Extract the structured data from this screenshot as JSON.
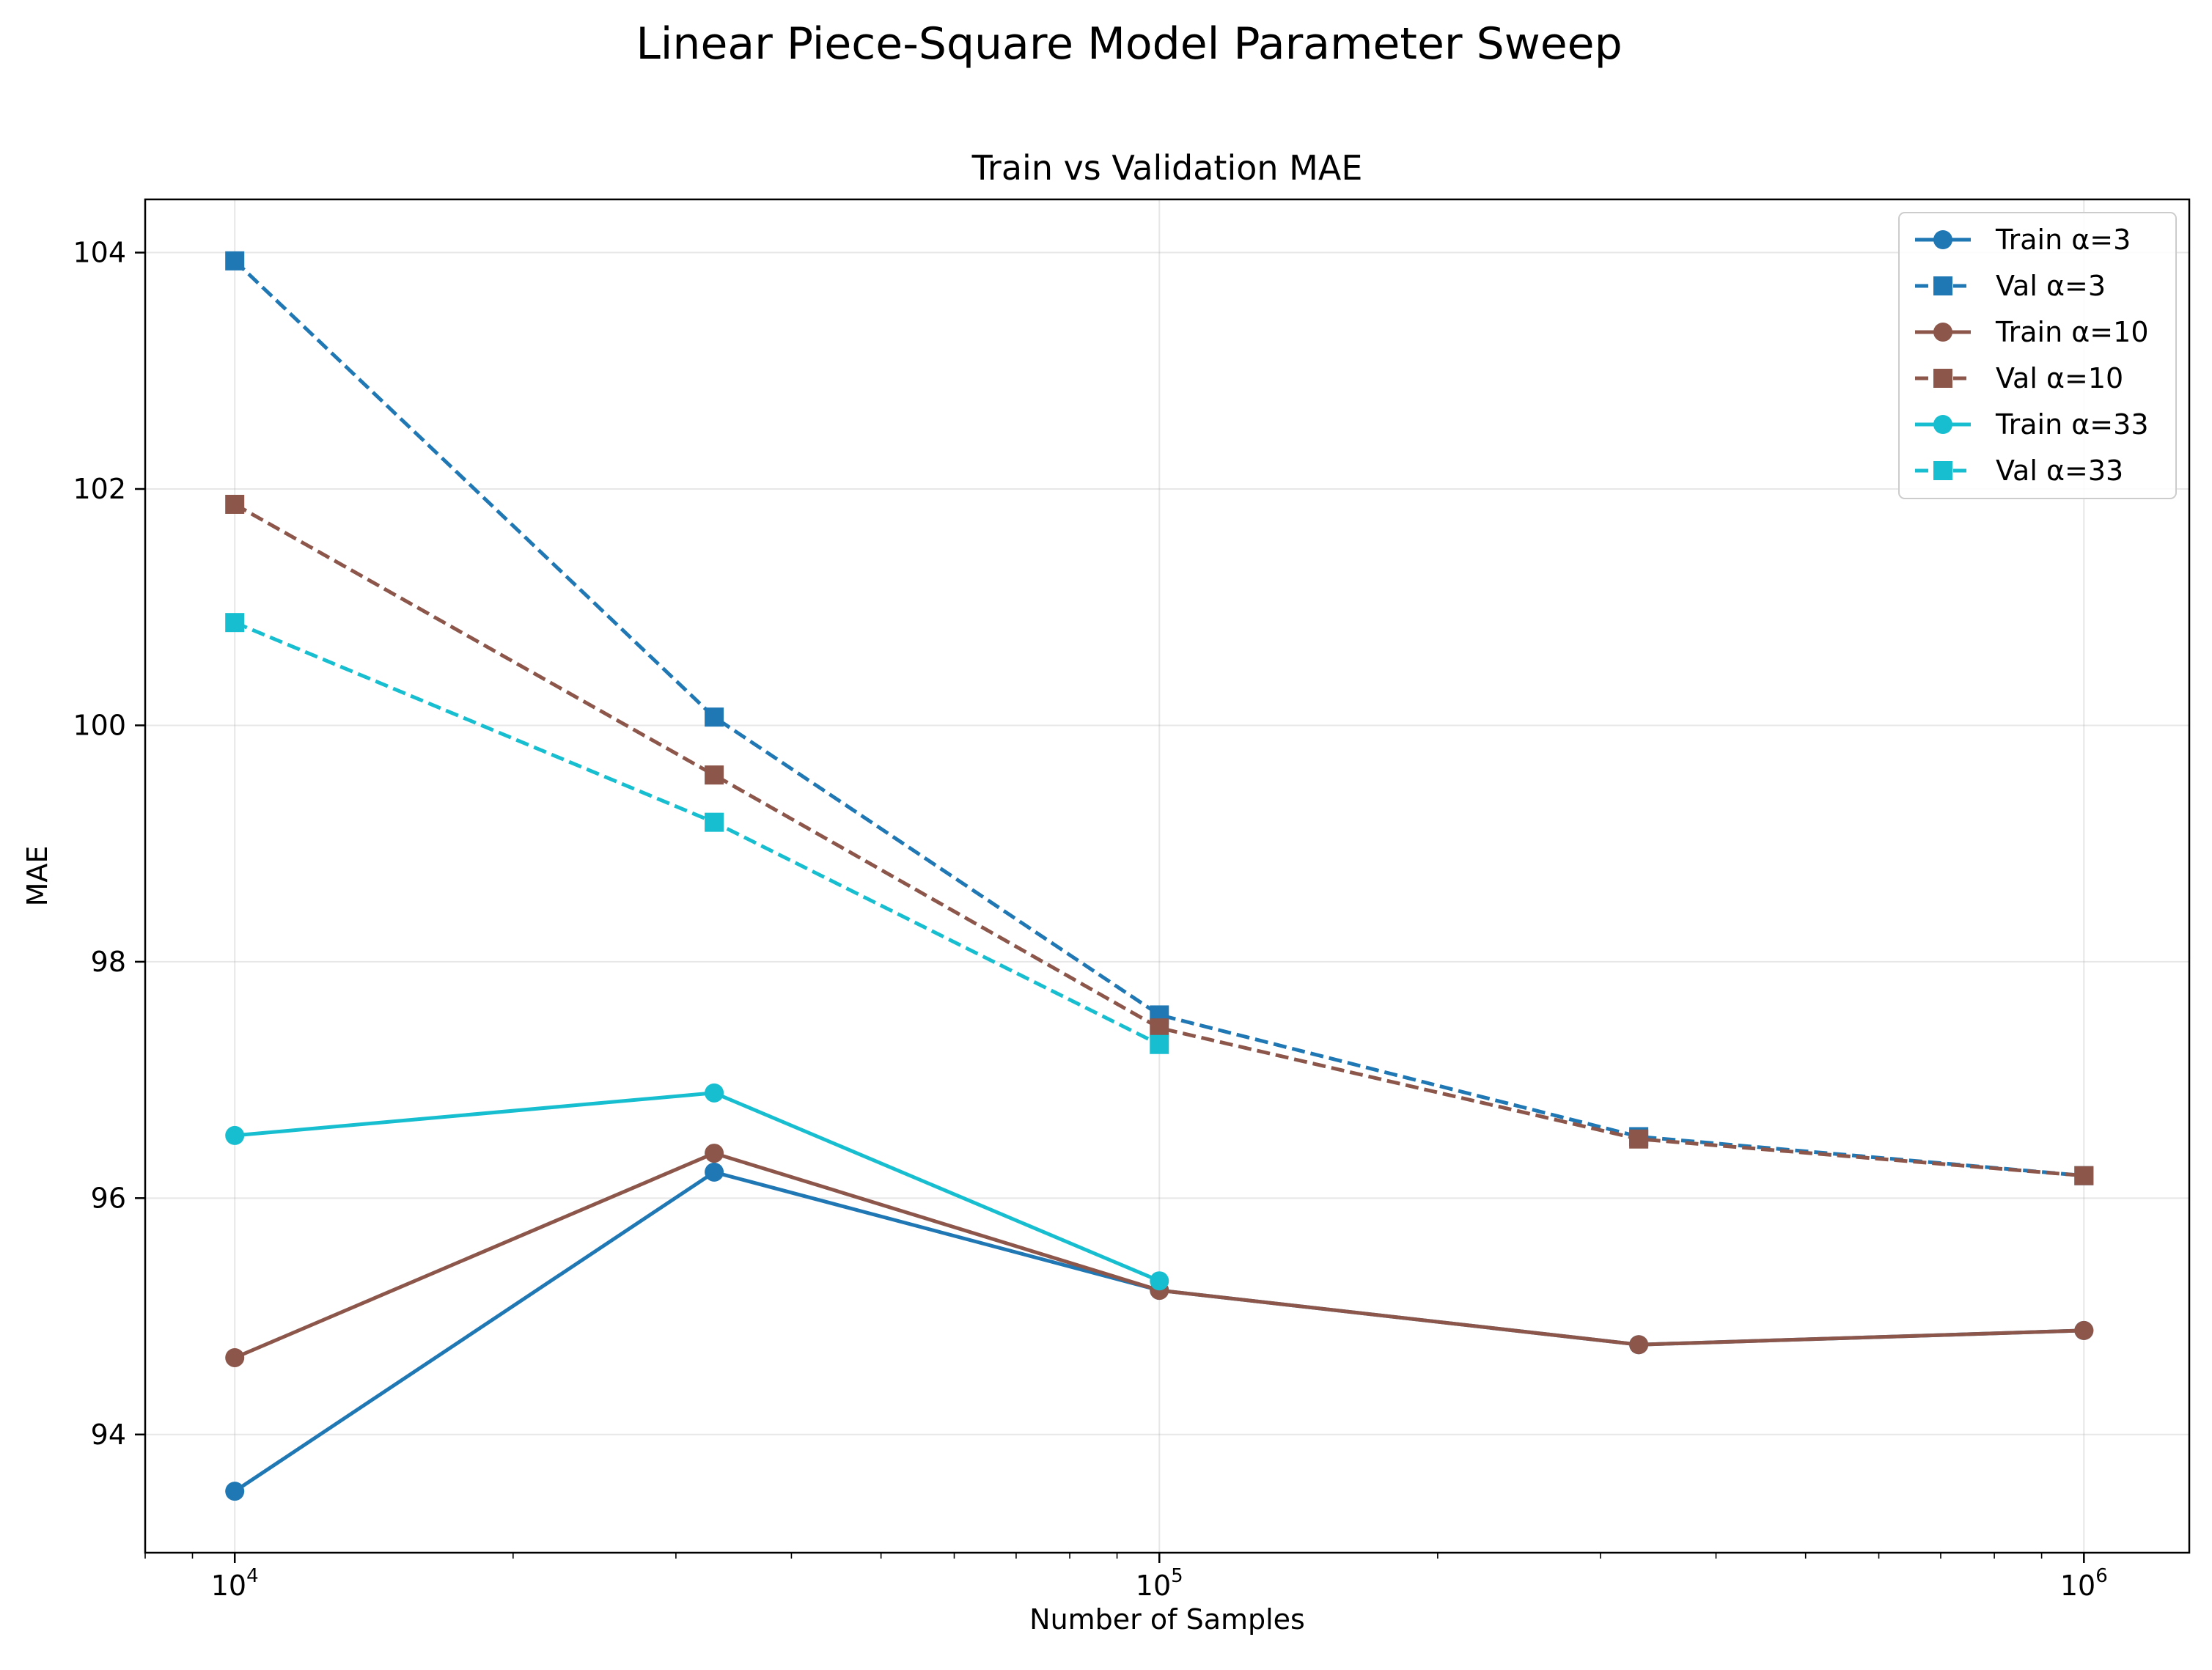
{
  "figure_title": "Linear Piece-Square Model Parameter Sweep",
  "chart_data": {
    "type": "line",
    "title": "Train vs Validation MAE",
    "xlabel": "Number of Samples",
    "ylabel": "MAE",
    "x_scale": "log",
    "xlim": [
      8000,
      1300000
    ],
    "ylim": [
      93.0,
      104.45
    ],
    "x": [
      10000,
      33000,
      100000,
      330000,
      1000000
    ],
    "x_ticks": [
      {
        "value": 10000,
        "base": "10",
        "exp": "4"
      },
      {
        "value": 100000,
        "base": "10",
        "exp": "5"
      },
      {
        "value": 1000000,
        "base": "10",
        "exp": "6"
      }
    ],
    "y_ticks": [
      "94",
      "96",
      "98",
      "100",
      "102",
      "104"
    ],
    "grid": true,
    "legend_position": "upper right",
    "series": [
      {
        "name": "Train α=3",
        "color": "#1f77b4",
        "style": "solid",
        "marker": "circle",
        "values": [
          93.52,
          96.22,
          95.22,
          94.76,
          94.88
        ]
      },
      {
        "name": "Val α=3",
        "color": "#1f77b4",
        "style": "dashed",
        "marker": "square",
        "values": [
          103.93,
          100.07,
          97.55,
          96.52,
          96.19
        ]
      },
      {
        "name": "Train α=10",
        "color": "#8c564b",
        "style": "solid",
        "marker": "circle",
        "values": [
          94.65,
          96.38,
          95.22,
          94.76,
          94.88
        ]
      },
      {
        "name": "Val α=10",
        "color": "#8c564b",
        "style": "dashed",
        "marker": "square",
        "values": [
          101.87,
          99.58,
          97.44,
          96.5,
          96.19
        ]
      },
      {
        "name": "Train α=33",
        "color": "#17becf",
        "style": "solid",
        "marker": "circle",
        "values": [
          96.53,
          96.89,
          95.3,
          null,
          null
        ]
      },
      {
        "name": "Val α=33",
        "color": "#17becf",
        "style": "dashed",
        "marker": "square",
        "values": [
          100.87,
          99.18,
          97.3,
          null,
          null
        ]
      }
    ]
  }
}
